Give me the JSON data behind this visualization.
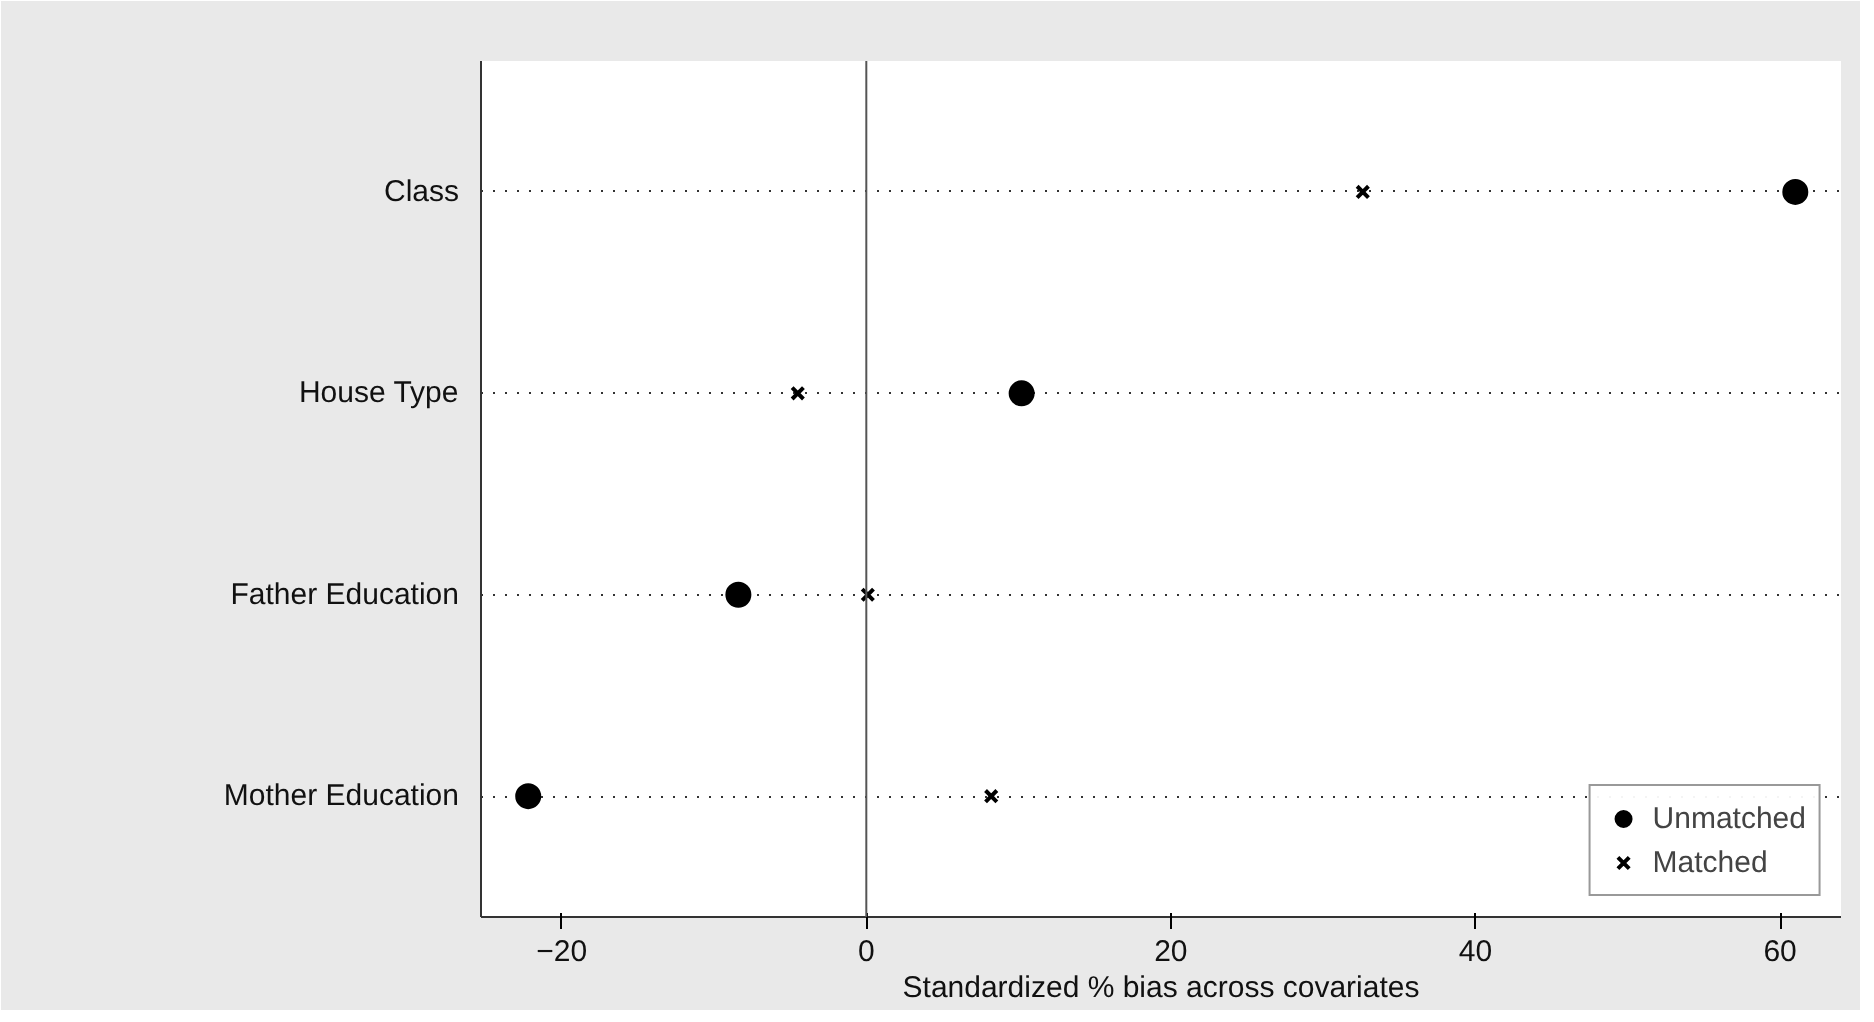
{
  "chart_data": {
    "type": "scatter",
    "xlabel": "Standardized % bias across covariates",
    "categories": [
      "Class",
      "House Type",
      "Father Education",
      "Mother Education"
    ],
    "orientation": "horizontal",
    "xlim": [
      -25.3,
      64
    ],
    "xticks": [
      -20,
      0,
      20,
      40,
      60
    ],
    "series": [
      {
        "name": "Unmatched",
        "color": "#000000",
        "marker": "circle",
        "values": [
          61,
          10.2,
          -8.4,
          -22.2
        ]
      },
      {
        "name": "Matched",
        "color": "#000000",
        "marker": "cross",
        "values": [
          32.6,
          -4.5,
          0.1,
          8.2
        ]
      }
    ],
    "ref_lines": [
      {
        "axis": "x",
        "value": 0,
        "color": "#555555"
      }
    ],
    "grid": "y",
    "legend": "bottom right"
  }
}
